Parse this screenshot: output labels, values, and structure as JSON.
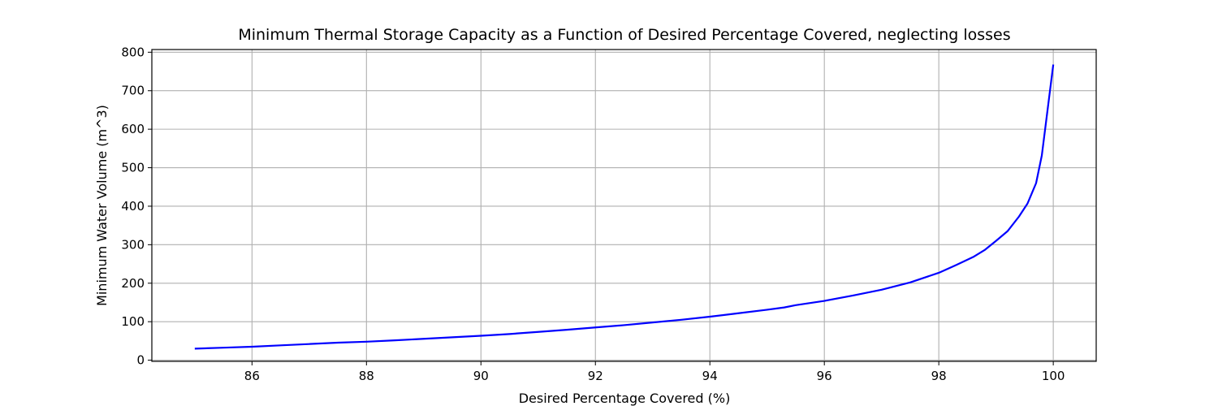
{
  "chart_data": {
    "type": "line",
    "title": "Minimum Thermal Storage Capacity as a Function of Desired Percentage Covered, neglecting losses",
    "xlabel": "Desired Percentage Covered (%)",
    "ylabel": "Minimum Water Volume (m^3)",
    "xlim": [
      84.25,
      100.75
    ],
    "ylim": [
      -3,
      807
    ],
    "xticks": [
      86,
      88,
      90,
      92,
      94,
      96,
      98,
      100
    ],
    "yticks": [
      0,
      100,
      200,
      300,
      400,
      500,
      600,
      700,
      800
    ],
    "grid": true,
    "line_color": "#0000ff",
    "series": [
      {
        "x": [
          85,
          85.5,
          86,
          86.5,
          87,
          87.5,
          88,
          88.5,
          89,
          89.5,
          90,
          90.5,
          91,
          91.5,
          92,
          92.5,
          93,
          93.5,
          94,
          94.5,
          95,
          95.3,
          95.5,
          96,
          96.5,
          97,
          97.5,
          98,
          98.3,
          98.6,
          98.8,
          99,
          99.2,
          99.4,
          99.55,
          99.7,
          99.8,
          99.9,
          100
        ],
        "y": [
          30,
          32.5,
          35,
          38.5,
          42,
          45.5,
          48,
          51.5,
          55.5,
          59.5,
          63.5,
          68,
          73.5,
          79,
          85,
          91,
          98,
          105,
          113,
          122,
          131,
          137,
          143,
          154,
          168,
          183,
          202,
          227,
          247,
          268,
          286,
          310,
          335,
          373,
          407,
          460,
          532,
          650,
          768
        ]
      }
    ]
  }
}
